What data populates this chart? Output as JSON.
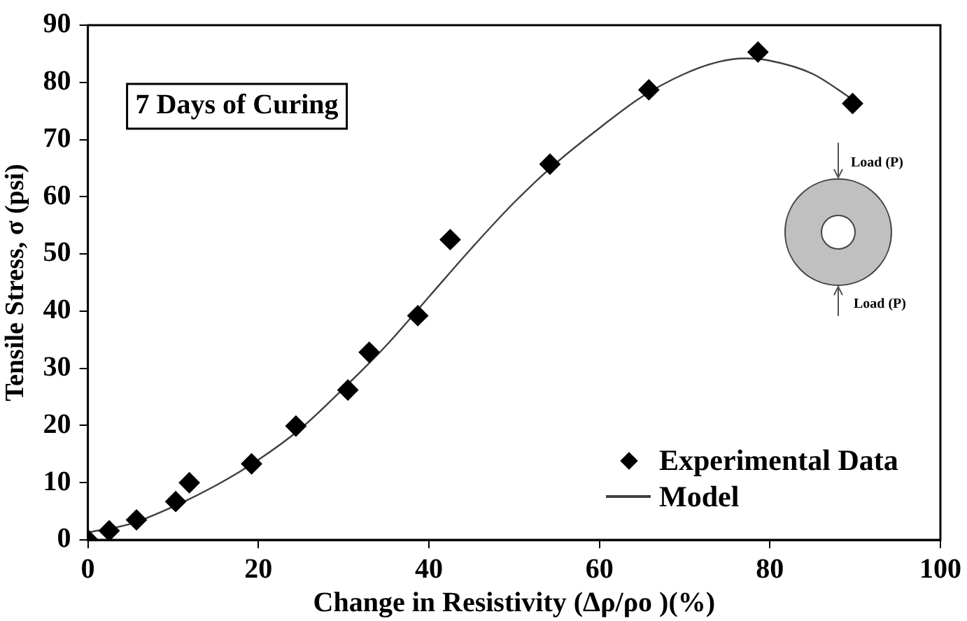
{
  "chart_data": {
    "type": "scatter",
    "title": "7 Days of Curing",
    "xlabel": "Change in Resistivity (Δρ/ρo )(%)",
    "ylabel": "Tensile Stress, σ (psi)",
    "xlim": [
      0,
      100
    ],
    "xticks": [
      0,
      20,
      40,
      60,
      80,
      100
    ],
    "ylim": [
      0,
      90
    ],
    "yticks": [
      0,
      10,
      20,
      30,
      40,
      50,
      60,
      70,
      80,
      90
    ],
    "grid": false,
    "legend": "bottom right",
    "annotations": [
      "Load (P)",
      "Load (P)"
    ],
    "series": [
      {
        "name": "Experimental Data",
        "type": "scatter",
        "color": "#000000",
        "marker": "diamond",
        "x": [
          0,
          2.5,
          5.7,
          10.3,
          11.9,
          19.2,
          24.4,
          30.5,
          33,
          38.7,
          42.5,
          54.2,
          65.8,
          78.6,
          89.7
        ],
        "values": [
          0,
          1.6,
          3.5,
          6.7,
          10,
          13.3,
          19.9,
          26.2,
          32.8,
          39.2,
          52.5,
          65.7,
          78.7,
          85.3,
          76.3
        ]
      },
      {
        "name": "Model",
        "type": "line",
        "color": "#404040",
        "marker": "none",
        "line_style": "solid",
        "x": [
          0,
          5,
          10,
          15,
          20,
          25,
          30,
          35,
          40,
          45,
          50,
          55,
          60,
          65,
          70,
          74,
          77,
          80,
          85,
          89.7
        ],
        "values": [
          1.3,
          2.8,
          5.8,
          9.5,
          14,
          19.5,
          26.5,
          34,
          42.5,
          51,
          59,
          66,
          72,
          77.5,
          81.5,
          83.6,
          84.2,
          83.8,
          81.5,
          77
        ]
      }
    ]
  }
}
